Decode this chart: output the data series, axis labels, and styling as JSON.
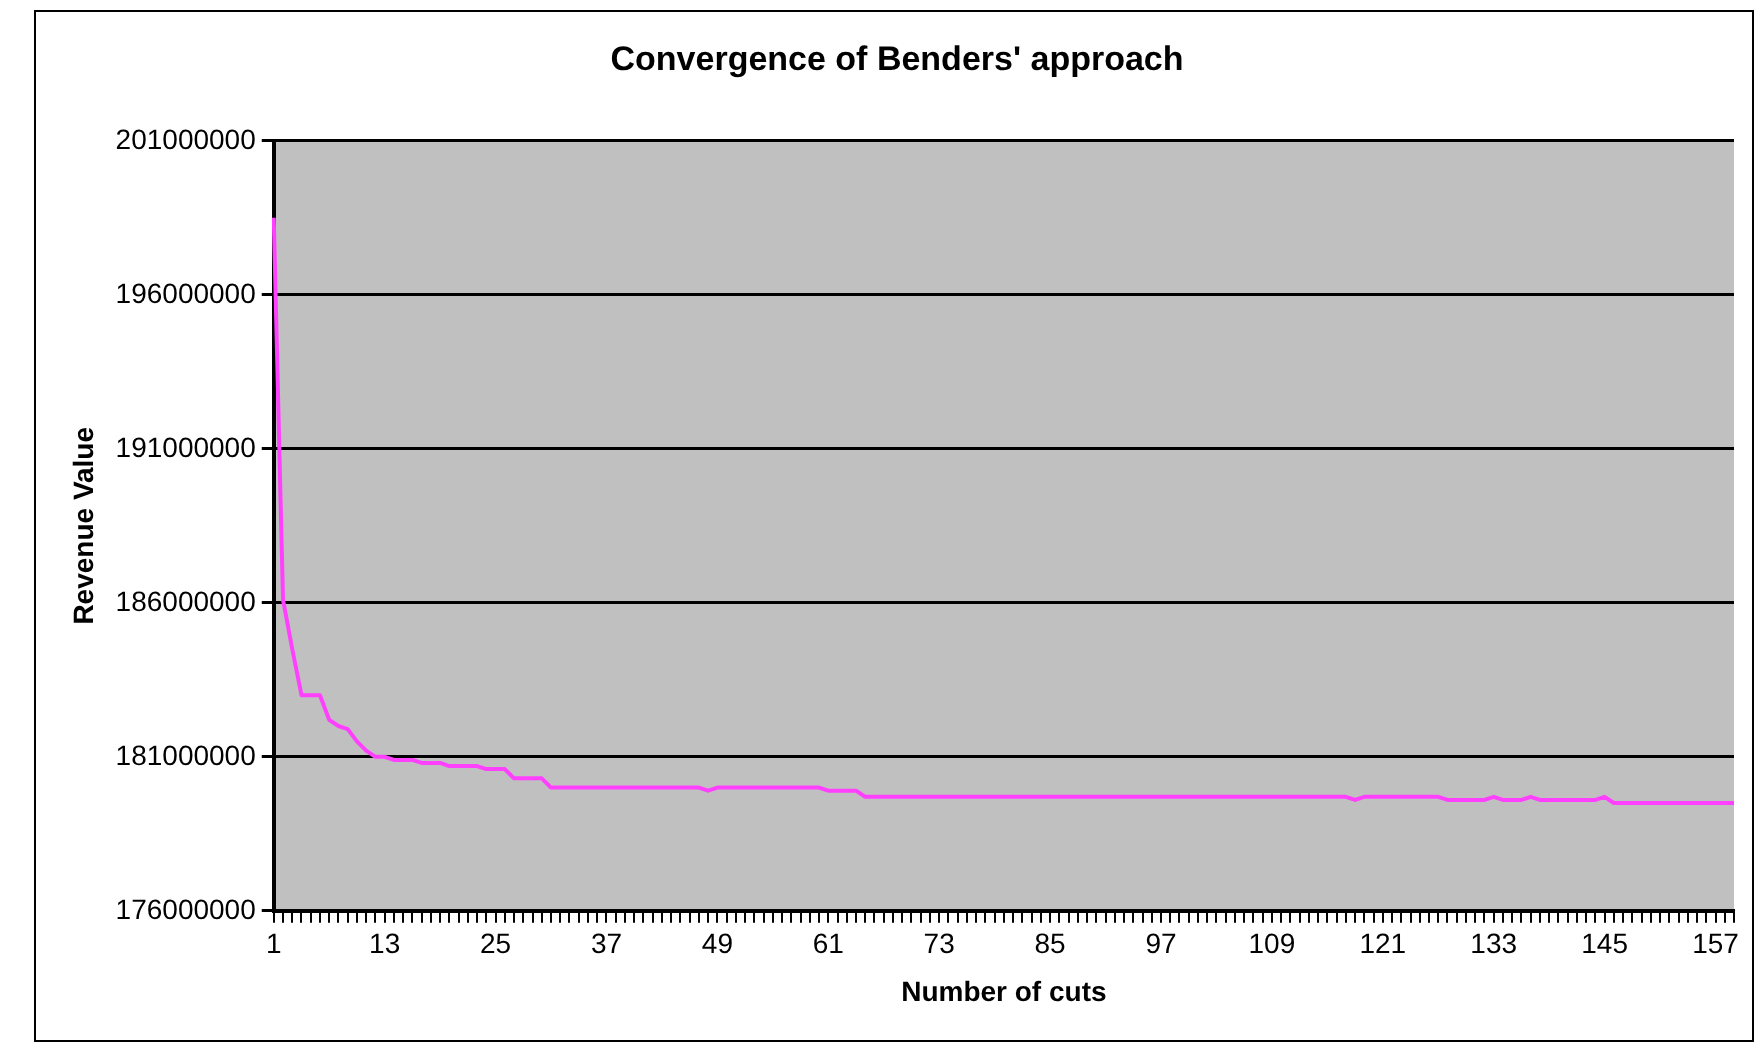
{
  "chart_data": {
    "type": "line",
    "title": "Convergence of Benders' approach",
    "xlabel": "Number of cuts",
    "ylabel": "Revenue Value",
    "categories": [
      "1",
      null,
      null,
      null,
      null,
      null,
      null,
      null,
      null,
      null,
      null,
      null,
      "13",
      null,
      null,
      null,
      null,
      null,
      null,
      null,
      null,
      null,
      null,
      null,
      "25",
      null,
      null,
      null,
      null,
      null,
      null,
      null,
      null,
      null,
      null,
      null,
      "37",
      null,
      null,
      null,
      null,
      null,
      null,
      null,
      null,
      null,
      null,
      null,
      "49",
      null,
      null,
      null,
      null,
      null,
      null,
      null,
      null,
      null,
      null,
      null,
      "61",
      null,
      null,
      null,
      null,
      null,
      null,
      null,
      null,
      null,
      null,
      null,
      "73",
      null,
      null,
      null,
      null,
      null,
      null,
      null,
      null,
      null,
      null,
      null,
      "85",
      null,
      null,
      null,
      null,
      null,
      null,
      null,
      null,
      null,
      null,
      null,
      "97",
      null,
      null,
      null,
      null,
      null,
      null,
      null,
      null,
      null,
      null,
      null,
      "109",
      null,
      null,
      null,
      null,
      null,
      null,
      null,
      null,
      null,
      null,
      null,
      "121",
      null,
      null,
      null,
      null,
      null,
      null,
      null,
      null,
      null,
      null,
      null,
      "133",
      null,
      null,
      null,
      null,
      null,
      null,
      null,
      null,
      null,
      null,
      null,
      "145",
      null,
      null,
      null,
      null,
      null,
      null,
      null,
      null,
      null,
      null,
      null,
      "157",
      null,
      null
    ],
    "series": [
      {
        "color": "#ff40ff",
        "values": [
          198500000,
          186100000,
          184500000,
          183000000,
          183000000,
          183000000,
          182200000,
          182000000,
          181900000,
          181500000,
          181200000,
          181000000,
          181000000,
          180900000,
          180900000,
          180900000,
          180800000,
          180800000,
          180800000,
          180700000,
          180700000,
          180700000,
          180700000,
          180600000,
          180600000,
          180600000,
          180300000,
          180300000,
          180300000,
          180300000,
          180000000,
          180000000,
          180000000,
          180000000,
          180000000,
          180000000,
          180000000,
          180000000,
          180000000,
          180000000,
          180000000,
          180000000,
          180000000,
          180000000,
          180000000,
          180000000,
          180000000,
          179900000,
          180000000,
          180000000,
          180000000,
          180000000,
          180000000,
          180000000,
          180000000,
          180000000,
          180000000,
          180000000,
          180000000,
          180000000,
          179900000,
          179900000,
          179900000,
          179900000,
          179700000,
          179700000,
          179700000,
          179700000,
          179700000,
          179700000,
          179700000,
          179700000,
          179700000,
          179700000,
          179700000,
          179700000,
          179700000,
          179700000,
          179700000,
          179700000,
          179700000,
          179700000,
          179700000,
          179700000,
          179700000,
          179700000,
          179700000,
          179700000,
          179700000,
          179700000,
          179700000,
          179700000,
          179700000,
          179700000,
          179700000,
          179700000,
          179700000,
          179700000,
          179700000,
          179700000,
          179700000,
          179700000,
          179700000,
          179700000,
          179700000,
          179700000,
          179700000,
          179700000,
          179700000,
          179700000,
          179700000,
          179700000,
          179700000,
          179700000,
          179700000,
          179700000,
          179700000,
          179600000,
          179700000,
          179700000,
          179700000,
          179700000,
          179700000,
          179700000,
          179700000,
          179700000,
          179700000,
          179600000,
          179600000,
          179600000,
          179600000,
          179600000,
          179700000,
          179600000,
          179600000,
          179600000,
          179700000,
          179600000,
          179600000,
          179600000,
          179600000,
          179600000,
          179600000,
          179600000,
          179700000,
          179500000,
          179500000,
          179500000,
          179500000,
          179500000,
          179500000,
          179500000,
          179500000,
          179500000,
          179500000,
          179500000,
          179500000,
          179500000,
          179500000
        ]
      }
    ],
    "ylim": [
      176000000,
      201000000
    ],
    "yticks": [
      176000000,
      181000000,
      186000000,
      191000000,
      196000000,
      201000000
    ],
    "grid": "y",
    "legend": false,
    "marker": "none",
    "line_style": "solid"
  }
}
